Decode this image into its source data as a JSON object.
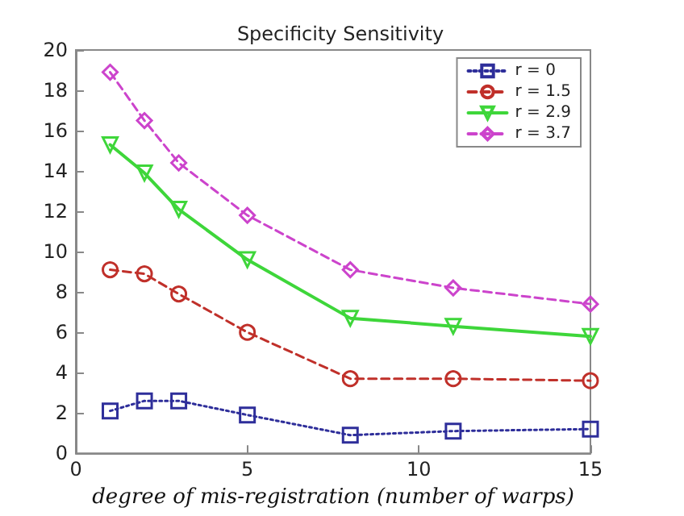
{
  "chart_data": {
    "type": "line",
    "title": "Specificity Sensitivity",
    "xlabel": "degree of mis-registration (number of warps)",
    "x": [
      1,
      2,
      3,
      5,
      8,
      11,
      15
    ],
    "series": [
      {
        "name": "r = 0",
        "color": "#2e2e9a",
        "marker": "square",
        "line_style": "dotted",
        "values": [
          2.1,
          2.6,
          2.6,
          1.9,
          0.9,
          1.1,
          1.2
        ]
      },
      {
        "name": "r = 1.5",
        "color": "#c0302a",
        "marker": "circle",
        "line_style": "dashed",
        "values": [
          9.1,
          8.9,
          7.9,
          6.0,
          3.7,
          3.7,
          3.6
        ]
      },
      {
        "name": "r = 2.9",
        "color": "#3ed63a",
        "marker": "triangle",
        "line_style": "solid",
        "values": [
          15.3,
          13.9,
          12.1,
          9.6,
          6.7,
          6.3,
          5.8
        ]
      },
      {
        "name": "r = 3.7",
        "color": "#cc44cc",
        "marker": "diamond",
        "line_style": "dashed",
        "values": [
          18.9,
          16.5,
          14.4,
          11.8,
          9.1,
          8.2,
          7.4
        ]
      }
    ],
    "xlim": [
      0,
      15
    ],
    "xticks": [
      0,
      5,
      10,
      15
    ],
    "ylim": [
      0,
      20
    ],
    "yticks": [
      0,
      2,
      4,
      6,
      8,
      10,
      12,
      14,
      16,
      18,
      20
    ],
    "grid": false,
    "legend": "top right"
  }
}
